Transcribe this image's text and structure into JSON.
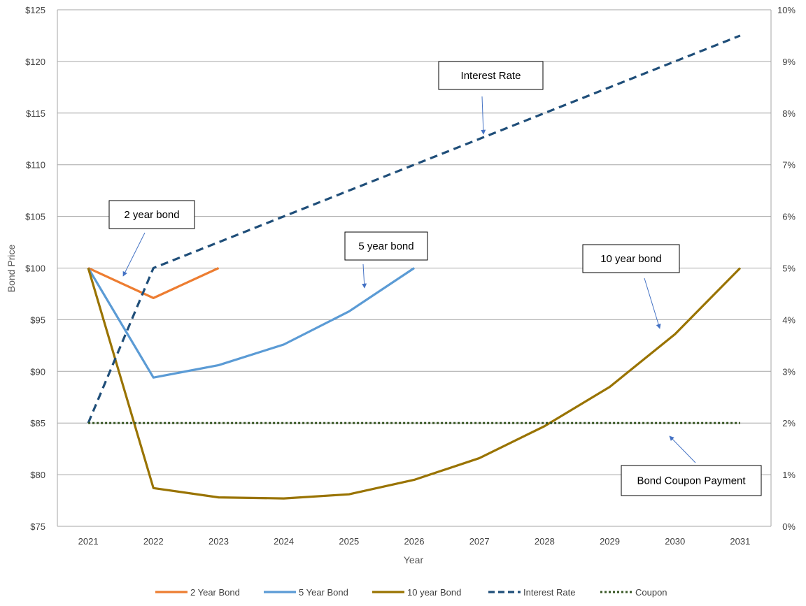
{
  "chart_data": {
    "type": "line",
    "title": "",
    "xlabel": "Year",
    "ylabel": "Bond Price",
    "x": [
      2021,
      2022,
      2023,
      2024,
      2025,
      2026,
      2027,
      2028,
      2029,
      2030,
      2031
    ],
    "ylim": [
      75,
      125
    ],
    "y_ticks": [
      75,
      80,
      85,
      90,
      95,
      100,
      105,
      110,
      115,
      120,
      125
    ],
    "y_tick_labels": [
      "$75",
      "$80",
      "$85",
      "$90",
      "$95",
      "$100",
      "$105",
      "$110",
      "$115",
      "$120",
      "$125"
    ],
    "y2lim": [
      0,
      10
    ],
    "y2_ticks": [
      0,
      1,
      2,
      3,
      4,
      5,
      6,
      7,
      8,
      9,
      10
    ],
    "y2_tick_labels": [
      "0%",
      "1%",
      "2%",
      "3%",
      "4%",
      "5%",
      "6%",
      "7%",
      "8%",
      "9%",
      "10%"
    ],
    "grid": true,
    "legend_position": "bottom",
    "series": [
      {
        "name": "2 Year Bond",
        "axis": "left",
        "color": "#ED7D31",
        "dash": "solid",
        "x": [
          2021,
          2022,
          2023
        ],
        "values": [
          100,
          97.1,
          100
        ]
      },
      {
        "name": "5 Year Bond",
        "axis": "left",
        "color": "#5B9BD5",
        "dash": "solid",
        "x": [
          2021,
          2022,
          2023,
          2024,
          2025,
          2026
        ],
        "values": [
          100,
          89.4,
          90.6,
          92.6,
          95.8,
          100
        ]
      },
      {
        "name": "10 year Bond",
        "axis": "left",
        "color": "#997300",
        "dash": "solid",
        "x": [
          2021,
          2022,
          2023,
          2024,
          2025,
          2026,
          2027,
          2028,
          2029,
          2030,
          2031
        ],
        "values": [
          100,
          78.7,
          77.8,
          77.7,
          78.1,
          79.5,
          81.6,
          84.7,
          88.5,
          93.6,
          100
        ]
      },
      {
        "name": "Interest Rate",
        "axis": "right",
        "color": "#1F4E79",
        "dash": "dashed",
        "x": [
          2021,
          2022,
          2023,
          2024,
          2025,
          2026,
          2027,
          2028,
          2029,
          2030,
          2031
        ],
        "values": [
          2,
          5,
          5.5,
          6,
          6.5,
          7,
          7.5,
          8,
          8.5,
          9,
          9.5
        ]
      },
      {
        "name": "Coupon",
        "axis": "right",
        "color": "#375623",
        "dash": "dotted",
        "x": [
          2021,
          2022,
          2023,
          2024,
          2025,
          2026,
          2027,
          2028,
          2029,
          2030,
          2031
        ],
        "values": [
          2,
          2,
          2,
          2,
          2,
          2,
          2,
          2,
          2,
          2,
          2
        ]
      }
    ],
    "annotations": [
      {
        "text": "Interest Rate",
        "points_to": "Interest Rate"
      },
      {
        "text": "2 year bond",
        "points_to": "2 Year Bond"
      },
      {
        "text": "5 year bond",
        "points_to": "5 Year Bond"
      },
      {
        "text": "10 year bond",
        "points_to": "10 year Bond"
      },
      {
        "text": "Bond Coupon Payment",
        "points_to": "Coupon"
      }
    ],
    "annotation_arrow_color": "#4472C4"
  }
}
